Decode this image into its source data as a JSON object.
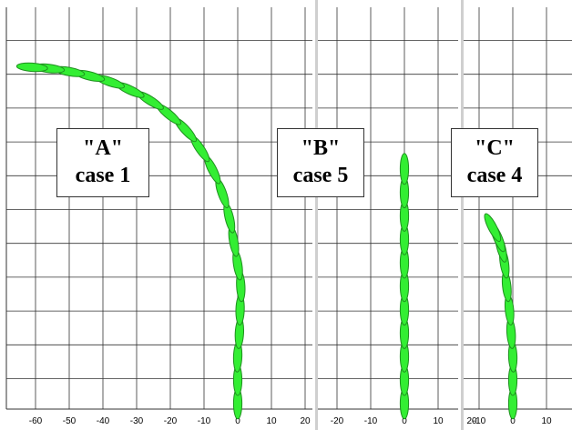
{
  "colors": {
    "grid": "#333333",
    "ship_fill": "#33ee33",
    "ship_stroke": "#1f8f1f",
    "panel_separator": "#cfcfcf"
  },
  "panels": [
    {
      "id": "A",
      "title": "\"A\"",
      "caption": "case 1",
      "x_ticks": [
        "-60",
        "-50",
        "-40",
        "-30",
        "-20",
        "-10",
        "0",
        "10",
        "20"
      ],
      "track": [
        [
          0,
          -46
        ],
        [
          0,
          -40
        ],
        [
          0,
          -34
        ],
        [
          0.5,
          -28
        ],
        [
          0.7,
          -22
        ],
        [
          0.9,
          -16
        ],
        [
          0,
          -10.5
        ],
        [
          -1.2,
          -4.5
        ],
        [
          -2.5,
          1.5
        ],
        [
          -4.6,
          7.8
        ],
        [
          -7.5,
          13.8
        ],
        [
          -11.2,
          19.2
        ],
        [
          -15.5,
          24
        ],
        [
          -20.5,
          28
        ],
        [
          -26,
          31.5
        ],
        [
          -32,
          34.2
        ],
        [
          -38,
          36.3
        ],
        [
          -44,
          37.8
        ],
        [
          -50,
          38.9
        ],
        [
          -56,
          39.7
        ],
        [
          -61,
          40
        ]
      ]
    },
    {
      "id": "B",
      "title": "\"B\"",
      "caption": "case 5",
      "x_ticks": [
        "-20",
        "-10",
        "0",
        "10",
        "20"
      ],
      "track": [
        [
          0,
          -46
        ],
        [
          0,
          -40
        ],
        [
          0,
          -34
        ],
        [
          0,
          -28
        ],
        [
          0,
          -22
        ],
        [
          0,
          -16
        ],
        [
          0,
          -10
        ],
        [
          0,
          -4
        ],
        [
          0,
          2
        ],
        [
          0,
          8
        ],
        [
          0,
          14
        ]
      ]
    },
    {
      "id": "C",
      "title": "\"C\"",
      "caption": "case 4",
      "x_ticks": [
        "-10",
        "0",
        "10"
      ],
      "track": [
        [
          0,
          -46
        ],
        [
          0,
          -40
        ],
        [
          0,
          -34
        ],
        [
          -0.5,
          -28
        ],
        [
          -1,
          -22
        ],
        [
          -1.8,
          -16
        ],
        [
          -2.5,
          -10
        ],
        [
          -3.5,
          -6
        ],
        [
          -4.5,
          -3.5
        ],
        [
          -6,
          -1
        ]
      ]
    }
  ]
}
